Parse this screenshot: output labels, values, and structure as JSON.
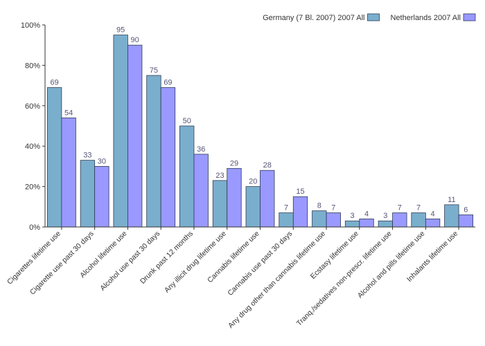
{
  "chart_data": {
    "type": "bar",
    "categories": [
      "Cigarettes lifetime use",
      "Cigarette use past 30 days",
      "Alcohol lifetime use",
      "Alcohol use past 30 days",
      "Drunk past 12 months",
      "Any illicit drug lifetime use",
      "Cannabis lifetime use",
      "Cannabis use past 30 days",
      "Any drug other than cannabis lifetime use",
      "Ecstasy lifetime use",
      "Tranq./sedatives non-prescr. lifetime use",
      "Alcohol and pills lifetime use",
      "Inhalants lifetime use"
    ],
    "series": [
      {
        "name": "Germany (7 Bl. 2007) 2007 All",
        "color": "#7aaecd",
        "values": [
          69,
          33,
          95,
          75,
          50,
          23,
          20,
          7,
          8,
          3,
          3,
          7,
          11
        ]
      },
      {
        "name": "Netherlands 2007 All",
        "color": "#9999ff",
        "values": [
          54,
          30,
          90,
          69,
          36,
          29,
          28,
          15,
          7,
          4,
          7,
          4,
          6
        ]
      }
    ],
    "ylim": [
      0,
      100
    ],
    "yticks": [
      "0%",
      "20%",
      "40%",
      "60%",
      "80%",
      "100%"
    ],
    "ytick_values": [
      0,
      20,
      40,
      60,
      80,
      100
    ],
    "title": "",
    "xlabel": "",
    "ylabel": "",
    "grid": false,
    "legend_position": "top-right"
  }
}
